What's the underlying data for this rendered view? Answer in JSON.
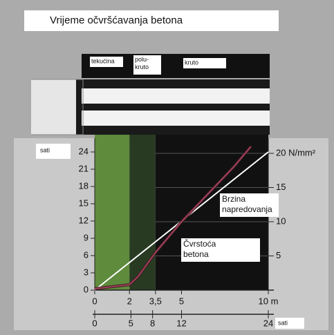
{
  "chart_data": {
    "type": "line",
    "title": "Vrijeme očvršćavanja betona",
    "regions": [
      {
        "label": "tekućina",
        "from": 0,
        "to": 2,
        "color": "#5f8b3c"
      },
      {
        "label": "polu- kruto",
        "from": 2,
        "to": 3.5,
        "color": "#283a22"
      },
      {
        "label": "kruto",
        "from": 3.5,
        "to": 10,
        "color": "#111111"
      }
    ],
    "x": [
      0,
      2,
      2.5,
      3.5,
      5,
      6.5,
      8,
      9,
      10
    ],
    "series": [
      {
        "name": "Brzina napredovanja",
        "color": "#ffffff",
        "x": [
          0,
          10
        ],
        "values": [
          0,
          24
        ]
      },
      {
        "name": "Čvrstoća betona",
        "color": "#a2425a",
        "axis": "y2",
        "x": [
          0,
          2,
          2.5,
          3.5,
          5,
          6.5,
          8,
          9
        ],
        "values": [
          0.2,
          0.8,
          2,
          5.5,
          10,
          14,
          18,
          21
        ]
      }
    ],
    "xlim": [
      0,
      10
    ],
    "xticks": [
      0,
      2,
      {
        "value": 3.5,
        "label": "3,5"
      },
      5,
      {
        "value": 10,
        "label": "10 m"
      }
    ],
    "x2label": "sati",
    "x2lim": [
      0,
      24
    ],
    "x2ticks": [
      0,
      5,
      8,
      12,
      24
    ],
    "ylabel": "sati",
    "ylim": [
      0,
      24
    ],
    "yticks": [
      0,
      3,
      6,
      9,
      12,
      15,
      18,
      21,
      24
    ],
    "y2lim": [
      0,
      20
    ],
    "y2ticks": [
      5,
      10,
      15,
      {
        "value": 20,
        "label": "20 N/mm²"
      }
    ],
    "grid": true
  }
}
